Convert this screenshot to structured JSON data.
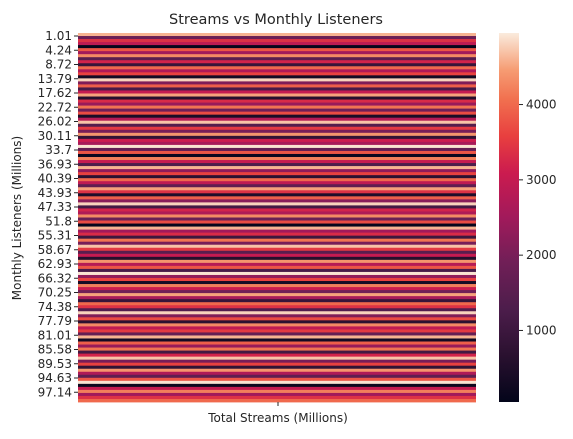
{
  "chart_data": {
    "type": "heatmap",
    "title": "Streams vs Monthly Listeners",
    "xlabel": "Total Streams (Millions)",
    "ylabel": "Monthly Listeners (Millions)",
    "x_tick_labels": [],
    "y_tick_labels": [
      "1.01",
      "4.24",
      "8.72",
      "13.79",
      "17.62",
      "22.72",
      "26.02",
      "30.11",
      "33.7",
      "36.93",
      "40.39",
      "43.93",
      "47.33",
      "51.8",
      "55.31",
      "58.67",
      "62.93",
      "66.32",
      "70.25",
      "74.38",
      "77.79",
      "81.01",
      "85.58",
      "89.53",
      "94.63",
      "97.14"
    ],
    "colorbar": {
      "range": [
        50,
        4950
      ],
      "ticks": [
        1000,
        2000,
        3000,
        4000
      ],
      "tick_labels": [
        "1000",
        "2000",
        "3000",
        "4000"
      ],
      "colormap": "rocket"
    },
    "rows": 122,
    "values": [
      4600,
      1800,
      3400,
      2900,
      120,
      3800,
      2500,
      4300,
      1500,
      3200,
      900,
      4000,
      2700,
      3600,
      300,
      4800,
      2100,
      3900,
      1200,
      3000,
      4500,
      600,
      3300,
      2400,
      4100,
      1900,
      3700,
      400,
      2800,
      4700,
      1400,
      3500,
      2000,
      4400,
      800,
      3100,
      2600,
      4900,
      1700,
      3800,
      200,
      4200,
      3000,
      1300,
      4600,
      2300,
      3600,
      700,
      4000,
      2900,
      1600,
      4500,
      3400,
      500,
      3900,
      2200,
      4800,
      1100,
      3200,
      2700,
      4300,
      1800,
      3700,
      100,
      4600,
      2500,
      3300,
      1000,
      4100,
      2000,
      4700,
      3500,
      1500,
      3000,
      600,
      4400,
      2800,
      3800,
      1200,
      4900,
      2300,
      3600,
      400,
      4200,
      3100,
      1900,
      4500,
      2600,
      900,
      4000,
      3400,
      1400,
      4800,
      2100,
      3700,
      700,
      4300,
      2900,
      3500,
      1700,
      4600,
      300,
      3900,
      2400,
      4100,
      1100,
      3200,
      4700,
      2000,
      3600,
      800,
      4400,
      2700,
      1600,
      3800,
      4900,
      200,
      3000,
      4200,
      2500,
      3400,
      4000
    ]
  }
}
